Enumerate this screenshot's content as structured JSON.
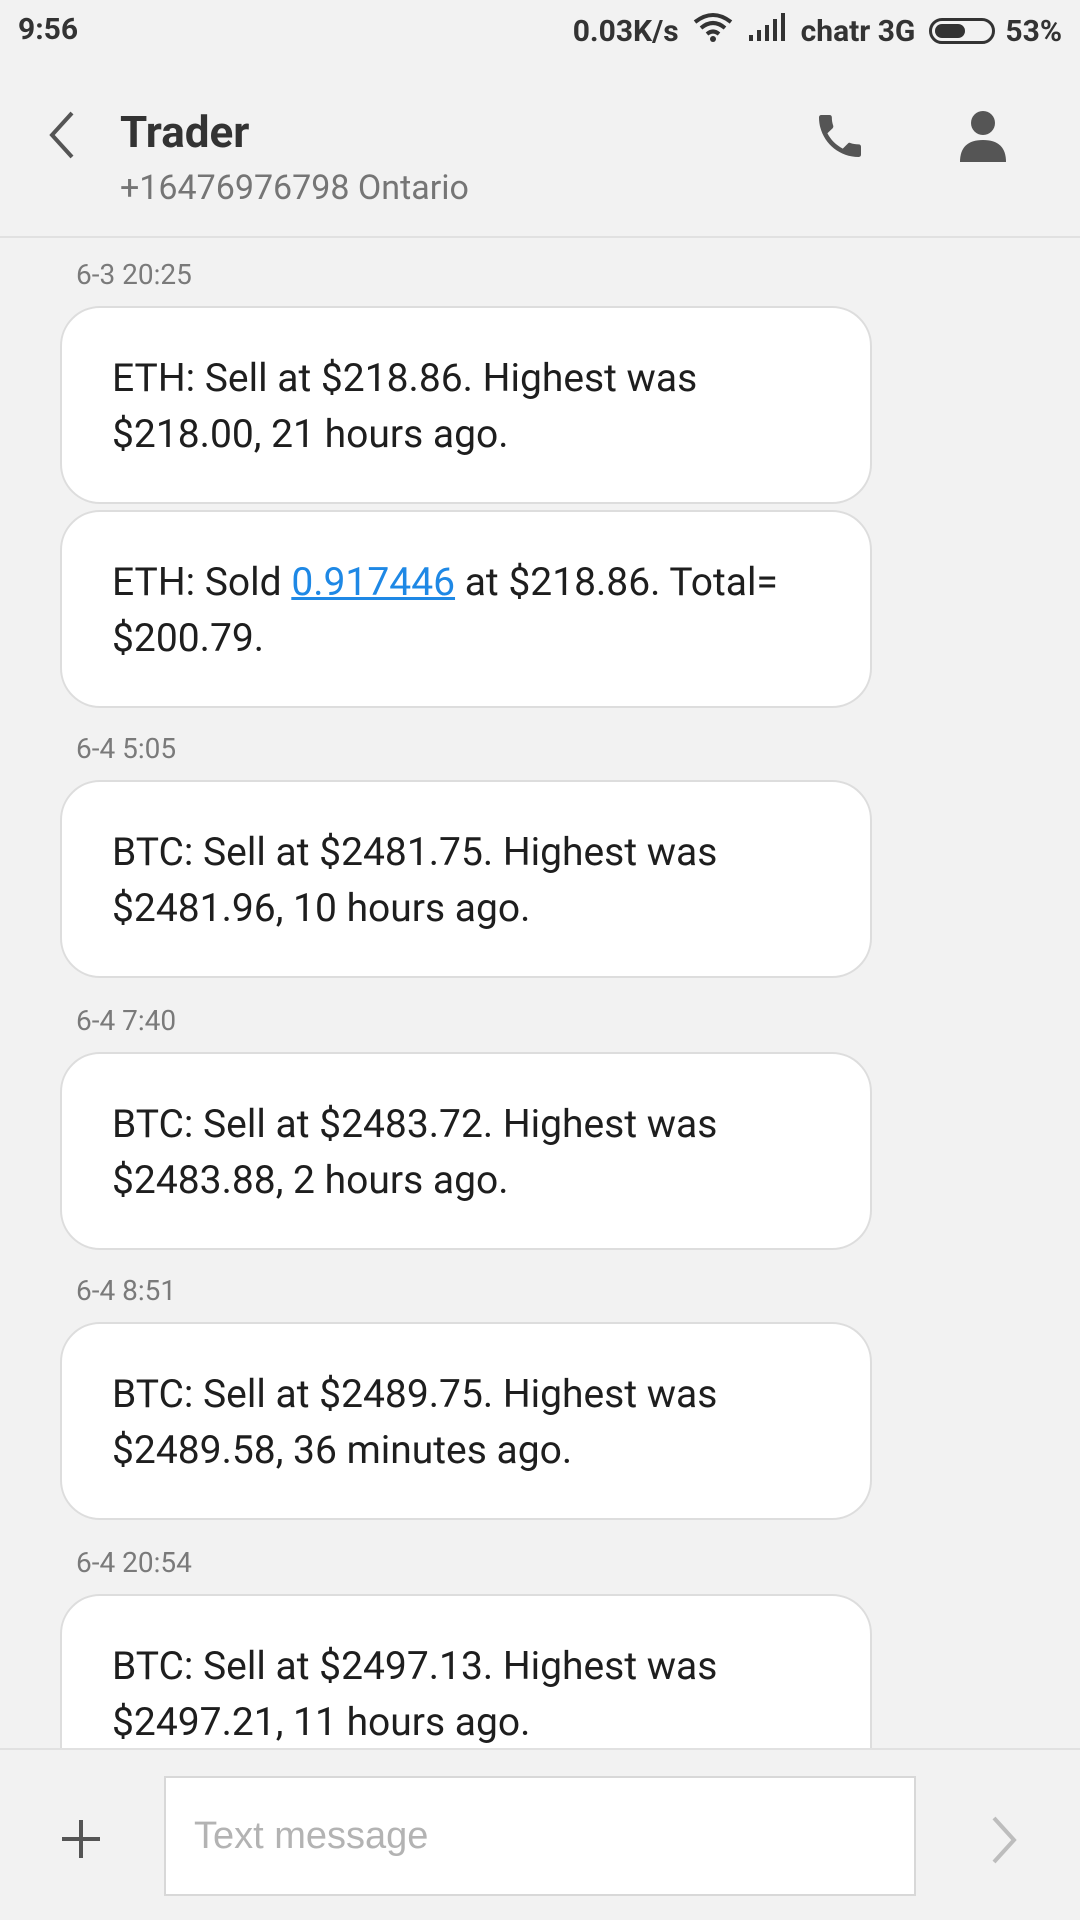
{
  "status_bar": {
    "time": "9:56",
    "speed": "0.03K/s",
    "carrier": "chatr 3G",
    "battery": "53%"
  },
  "header": {
    "title": "Trader",
    "subtitle": "+16476976798 Ontario"
  },
  "messages": [
    {
      "timestamp": "6-3 20:25",
      "text": "ETH: Sell at $218.86. Highest was $218.00, 21 hours ago."
    },
    {
      "text_before": "ETH: Sold ",
      "link": "0.917446",
      "text_after": " at $218.86. Total= $200.79."
    },
    {
      "timestamp": "6-4 5:05",
      "text": "BTC: Sell at $2481.75. Highest was $2481.96, 10 hours ago."
    },
    {
      "timestamp": "6-4 7:40",
      "text": "BTC: Sell at $2483.72. Highest was $2483.88, 2 hours ago."
    },
    {
      "timestamp": "6-4 8:51",
      "text": "BTC: Sell at $2489.75. Highest was $2489.58, 36 minutes ago."
    },
    {
      "timestamp": "6-4 20:54",
      "text": "BTC: Sell at $2497.13. Highest was $2497.21, 11 hours ago."
    }
  ],
  "composer": {
    "placeholder": "Text message"
  },
  "icons": [
    "back-chevron-icon",
    "phone-icon",
    "person-icon",
    "wifi-icon",
    "signal-icon",
    "battery-icon",
    "plus-icon",
    "send-chevron-icon"
  ]
}
